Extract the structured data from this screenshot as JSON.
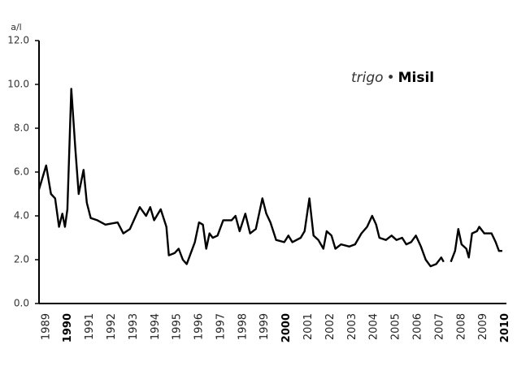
{
  "chart_data": {
    "type": "line",
    "title": [
      "trigo",
      "•",
      "Misil"
    ],
    "y_label": "a/l",
    "x": [
      1988.67,
      1989.0,
      1989.22,
      1989.41,
      1989.59,
      1989.74,
      1989.86,
      1989.97,
      1990.15,
      1990.34,
      1990.49,
      1990.71,
      1990.86,
      1991.04,
      1991.34,
      1991.71,
      1992.27,
      1992.53,
      1992.83,
      1993.28,
      1993.57,
      1993.76,
      1993.94,
      1994.24,
      1994.5,
      1994.61,
      1994.87,
      1995.06,
      1995.25,
      1995.43,
      1995.8,
      1995.99,
      1996.17,
      1996.32,
      1996.47,
      1996.62,
      1996.84,
      1997.1,
      1997.48,
      1997.66,
      1997.85,
      1998.11,
      1998.33,
      1998.59,
      1998.89,
      1999.07,
      1999.26,
      1999.52,
      1999.89,
      2000.08,
      2000.26,
      2000.64,
      2000.82,
      2001.04,
      2001.23,
      2001.45,
      2001.68,
      2001.83,
      2002.05,
      2002.23,
      2002.49,
      2002.87,
      2003.13,
      2003.42,
      2003.68,
      2003.91,
      2004.09,
      2004.24,
      2004.54,
      2004.8,
      2005.02,
      2005.28,
      2005.47,
      2005.69,
      2005.91,
      2006.14,
      2006.36,
      2006.58,
      2006.84,
      2007.07,
      2007.18,
      2007.35,
      2007.51,
      2007.7,
      2007.85,
      2008.0,
      2008.22,
      2008.33,
      2008.48,
      2008.7,
      2008.81,
      2009.04,
      2009.37,
      2009.56,
      2009.71,
      2009.86
    ],
    "series": [
      {
        "color": "#000000",
        "values": [
          5.2,
          6.3,
          5.0,
          4.8,
          3.5,
          4.1,
          3.5,
          4.3,
          9.8,
          7.0,
          5.0,
          6.1,
          4.6,
          3.9,
          3.8,
          3.6,
          3.7,
          3.2,
          3.4,
          4.4,
          4.0,
          4.4,
          3.8,
          4.3,
          3.5,
          2.2,
          2.3,
          2.5,
          2.0,
          1.8,
          2.8,
          3.7,
          3.6,
          2.5,
          3.2,
          3.0,
          3.1,
          3.8,
          3.8,
          4.0,
          3.3,
          4.1,
          3.2,
          3.4,
          4.8,
          4.1,
          3.7,
          2.9,
          2.8,
          3.1,
          2.8,
          3.0,
          3.3,
          4.8,
          3.1,
          2.9,
          2.5,
          3.3,
          3.1,
          2.5,
          2.7,
          2.6,
          2.7,
          3.2,
          3.5,
          4.0,
          3.6,
          3.0,
          2.9,
          3.1,
          2.9,
          3.0,
          2.7,
          2.8,
          3.1,
          2.6,
          2.0,
          1.7,
          1.8,
          2.1,
          1.9,
          null,
          1.9,
          2.4,
          3.4,
          2.7,
          2.5,
          2.1,
          3.2,
          3.3,
          3.5,
          3.2,
          3.2,
          2.8,
          2.4,
          2.4
        ]
      }
    ],
    "xlim": [
      1988.6,
      2010.2
    ],
    "xticks": [
      1989,
      1990,
      1991,
      1992,
      1993,
      1994,
      1995,
      1996,
      1997,
      1998,
      1999,
      2000,
      2001,
      2002,
      2003,
      2004,
      2005,
      2006,
      2007,
      2008,
      2009,
      2010
    ],
    "ylim": [
      0,
      12
    ],
    "yticks": [
      {
        "value": 0,
        "label": "0.0"
      },
      {
        "value": 2,
        "label": "2.0"
      },
      {
        "value": 4,
        "label": "4.0"
      },
      {
        "value": 6,
        "label": "6.0"
      },
      {
        "value": 8,
        "label": "8.0"
      },
      {
        "value": 10,
        "label": "10.0"
      },
      {
        "value": 12,
        "label": "12.0"
      }
    ]
  }
}
